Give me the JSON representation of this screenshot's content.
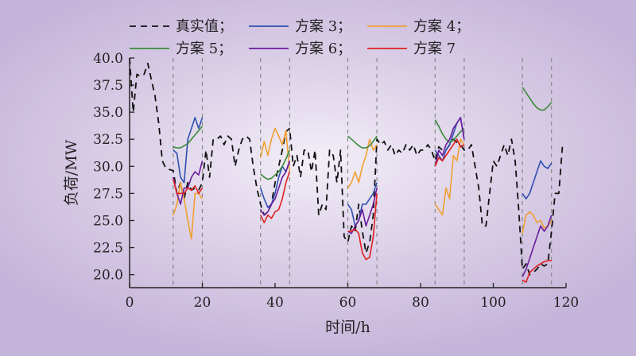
{
  "chart_data": {
    "type": "line",
    "xlabel": "时间/h",
    "ylabel": "负荷/MW",
    "xlim": [
      0,
      120
    ],
    "ylim": [
      18.8,
      40
    ],
    "xticks": [
      0,
      20,
      40,
      60,
      80,
      100,
      120
    ],
    "yticks": [
      20.0,
      22.5,
      25.0,
      27.5,
      30.0,
      32.5,
      35.0,
      37.5,
      40.0
    ],
    "ytick_labels": [
      "20.0",
      "22.5",
      "25.0",
      "27.5",
      "30.0",
      "32.5",
      "35.0",
      "37.5",
      "40.0"
    ],
    "grid": false,
    "legend_position": "top",
    "vertical_reference_lines": [
      12,
      20,
      36,
      44,
      60,
      68,
      84,
      92,
      108,
      116
    ],
    "series": [
      {
        "name": "真实值；",
        "color": "#111111",
        "dash": "8,6",
        "x": [
          0,
          1,
          2,
          3,
          4,
          5,
          6,
          7,
          8,
          9,
          10,
          11,
          12,
          13,
          14,
          15,
          16,
          17,
          18,
          19,
          20,
          21,
          22,
          23,
          24,
          25,
          26,
          27,
          28,
          29,
          30,
          31,
          32,
          33,
          34,
          35,
          36,
          37,
          38,
          39,
          40,
          41,
          42,
          43,
          44,
          45,
          46,
          47,
          48,
          49,
          50,
          51,
          52,
          53,
          54,
          55,
          56,
          57,
          58,
          59,
          60,
          61,
          62,
          63,
          64,
          65,
          66,
          67,
          68,
          69,
          70,
          71,
          72,
          73,
          74,
          75,
          76,
          77,
          78,
          79,
          80,
          81,
          82,
          83,
          84,
          85,
          86,
          87,
          88,
          89,
          90,
          91,
          92,
          93,
          94,
          95,
          96,
          97,
          98,
          99,
          100,
          101,
          102,
          103,
          104,
          105,
          106,
          107,
          108,
          109,
          110,
          111,
          112,
          113,
          114,
          115,
          116,
          117,
          118,
          119
        ],
        "y": [
          40.0,
          35.0,
          38.5,
          38.3,
          38.5,
          39.5,
          38.0,
          36.5,
          34.0,
          30.5,
          29.8,
          29.7,
          29.6,
          27.5,
          28.5,
          27.0,
          28.5,
          27.8,
          28.0,
          27.8,
          28.5,
          31.5,
          29.0,
          32.5,
          32.5,
          32.8,
          32.0,
          32.8,
          32.5,
          30.0,
          31.5,
          32.5,
          32.8,
          32.5,
          30.0,
          28.0,
          26.5,
          25.5,
          25.8,
          26.5,
          28.5,
          30.0,
          31.5,
          33.2,
          33.5,
          30.0,
          31.0,
          29.0,
          31.5,
          31.5,
          29.5,
          31.5,
          25.5,
          26.5,
          26.0,
          31.5,
          31.0,
          28.5,
          31.5,
          23.5,
          23.0,
          24.5,
          24.0,
          26.5,
          24.0,
          22.0,
          23.0,
          25.5,
          32.5,
          32.0,
          32.3,
          31.5,
          32.0,
          31.0,
          31.5,
          31.2,
          32.0,
          31.5,
          32.0,
          31.0,
          31.5,
          31.5,
          32.0,
          31.5,
          30.5,
          31.8,
          31.5,
          31.5,
          32.0,
          32.5,
          32.2,
          32.0,
          31.5,
          31.5,
          32.0,
          30.0,
          28.0,
          24.5,
          24.5,
          27.5,
          30.5,
          30.0,
          31.0,
          32.0,
          31.0,
          32.5,
          30.5,
          26.0,
          20.5,
          21.0,
          20.0,
          20.2,
          20.5,
          21.0,
          20.8,
          21.0,
          24.0,
          27.5,
          27.5,
          31.8
        ]
      },
      {
        "name": "方案 3；",
        "color": "#2e4fb0",
        "segments": [
          {
            "x": [
              12,
              13,
              14,
              15,
              16,
              17,
              18,
              19,
              20
            ],
            "y": [
              31.5,
              31.2,
              29.0,
              28.5,
              32.5,
              33.5,
              34.5,
              33.5,
              34.5
            ]
          },
          {
            "x": [
              36,
              37,
              38,
              39,
              40,
              41,
              42,
              43,
              44
            ],
            "y": [
              28.0,
              27.0,
              26.2,
              26.5,
              27.5,
              29.0,
              30.0,
              29.5,
              30.5
            ]
          },
          {
            "x": [
              60,
              61,
              62,
              63,
              64,
              65,
              66,
              67,
              68
            ],
            "y": [
              26.5,
              26.0,
              24.5,
              25.0,
              26.5,
              26.5,
              27.0,
              27.5,
              28.5
            ]
          },
          {
            "x": [
              84,
              85,
              86,
              87,
              88,
              89,
              90,
              91,
              92
            ],
            "y": [
              31.5,
              31.0,
              30.5,
              31.5,
              32.0,
              33.0,
              34.0,
              34.5,
              32.5
            ]
          },
          {
            "x": [
              108,
              109,
              110,
              111,
              112,
              113,
              114,
              115,
              116
            ],
            "y": [
              27.5,
              27.0,
              27.5,
              28.5,
              29.5,
              30.5,
              30.0,
              29.8,
              30.3
            ]
          }
        ]
      },
      {
        "name": "方案 4；",
        "color": "#f0a030",
        "segments": [
          {
            "x": [
              12,
              13,
              14,
              15,
              16,
              17,
              18,
              19,
              20
            ],
            "y": [
              25.5,
              26.5,
              28.5,
              27.0,
              25.0,
              23.3,
              27.5,
              27.5,
              27.0
            ]
          },
          {
            "x": [
              36,
              37,
              38,
              39,
              40,
              41,
              42,
              43,
              44
            ],
            "y": [
              30.8,
              32.3,
              31.0,
              32.5,
              33.5,
              32.8,
              32.0,
              33.3,
              29.5
            ]
          },
          {
            "x": [
              60,
              61,
              62,
              63,
              64,
              65,
              66,
              67,
              68
            ],
            "y": [
              28.0,
              28.5,
              29.5,
              28.5,
              30.0,
              31.0,
              32.5,
              31.5,
              32.0
            ]
          },
          {
            "x": [
              84,
              85,
              86,
              87,
              88,
              89,
              90,
              91,
              92
            ],
            "y": [
              26.5,
              26.0,
              25.5,
              28.0,
              27.0,
              31.0,
              30.5,
              32.5,
              32.0
            ]
          },
          {
            "x": [
              108,
              109,
              110,
              111,
              112,
              113,
              114,
              115,
              116
            ],
            "y": [
              23.8,
              25.5,
              25.8,
              25.5,
              24.8,
              25.0,
              24.3,
              24.5,
              25.0
            ]
          }
        ]
      },
      {
        "name": "方案 5；",
        "color": "#3a8a3a",
        "segments": [
          {
            "x": [
              12,
              13,
              14,
              15,
              16,
              17,
              18,
              19,
              20
            ],
            "y": [
              31.8,
              31.7,
              31.7,
              31.9,
              32.1,
              32.5,
              32.9,
              33.3,
              33.7
            ]
          },
          {
            "x": [
              36,
              37,
              38,
              39,
              40,
              41,
              42,
              43,
              44
            ],
            "y": [
              29.3,
              29.0,
              28.8,
              28.9,
              29.2,
              29.5,
              30.0,
              30.7,
              31.5
            ]
          },
          {
            "x": [
              60,
              61,
              62,
              63,
              64,
              65,
              66,
              67,
              68
            ],
            "y": [
              32.8,
              32.5,
              32.2,
              31.9,
              31.7,
              31.7,
              31.9,
              32.3,
              32.8
            ]
          },
          {
            "x": [
              84,
              85,
              86,
              87,
              88,
              89,
              90,
              91,
              92
            ],
            "y": [
              34.3,
              33.7,
              33.0,
              32.5,
              32.2,
              32.4,
              32.8,
              33.2,
              33.5
            ]
          },
          {
            "x": [
              108,
              109,
              110,
              111,
              112,
              113,
              114,
              115,
              116
            ],
            "y": [
              37.3,
              36.8,
              36.3,
              35.8,
              35.4,
              35.2,
              35.2,
              35.5,
              35.9
            ]
          }
        ]
      },
      {
        "name": "方案 6；",
        "color": "#6a1b9a",
        "segments": [
          {
            "x": [
              12,
              13,
              14,
              15,
              16,
              17,
              18,
              19,
              20
            ],
            "y": [
              29.0,
              27.5,
              26.5,
              28.0,
              28.0,
              29.0,
              29.5,
              29.2,
              30.5
            ]
          },
          {
            "x": [
              36,
              37,
              38,
              39,
              40,
              41,
              42,
              43,
              44
            ],
            "y": [
              26.0,
              25.5,
              25.8,
              26.5,
              27.0,
              28.0,
              29.0,
              29.5,
              30.5
            ]
          },
          {
            "x": [
              60,
              61,
              62,
              63,
              64,
              65,
              66,
              67,
              68
            ],
            "y": [
              24.0,
              23.8,
              24.5,
              25.0,
              26.0,
              24.5,
              25.5,
              26.5,
              28.0
            ]
          },
          {
            "x": [
              84,
              85,
              86,
              87,
              88,
              89,
              90,
              91,
              92
            ],
            "y": [
              30.0,
              31.5,
              31.0,
              32.0,
              32.5,
              33.5,
              34.0,
              34.5,
              32.5
            ]
          },
          {
            "x": [
              108,
              109,
              110,
              111,
              112,
              113,
              114,
              115,
              116
            ],
            "y": [
              19.8,
              20.5,
              21.5,
              22.5,
              23.5,
              24.5,
              24.0,
              24.5,
              25.5
            ]
          }
        ]
      },
      {
        "name": "方案 7",
        "color": "#e02020",
        "segments": [
          {
            "x": [
              12,
              13,
              14,
              15,
              16,
              17,
              18,
              19,
              20
            ],
            "y": [
              28.8,
              27.5,
              27.5,
              27.5,
              28.0,
              27.8,
              28.2,
              27.5,
              28.0
            ]
          },
          {
            "x": [
              36,
              37,
              38,
              39,
              40,
              41,
              42,
              43,
              44
            ],
            "y": [
              25.5,
              24.8,
              25.5,
              25.2,
              25.8,
              26.0,
              27.0,
              28.5,
              29.5
            ]
          },
          {
            "x": [
              60,
              61,
              62,
              63,
              64,
              65,
              66,
              67,
              68
            ],
            "y": [
              24.0,
              24.0,
              24.2,
              23.8,
              22.0,
              21.4,
              21.6,
              23.5,
              27.5
            ]
          },
          {
            "x": [
              84,
              85,
              86,
              87,
              88,
              89,
              90,
              91,
              92
            ],
            "y": [
              30.0,
              30.8,
              30.5,
              31.0,
              31.5,
              32.0,
              32.5,
              31.8,
              32.0
            ]
          },
          {
            "x": [
              108,
              109,
              110,
              111,
              112,
              113,
              114,
              115,
              116
            ],
            "y": [
              19.5,
              19.3,
              20.2,
              20.5,
              20.8,
              21.0,
              21.2,
              21.3,
              21.3
            ]
          }
        ]
      }
    ]
  }
}
